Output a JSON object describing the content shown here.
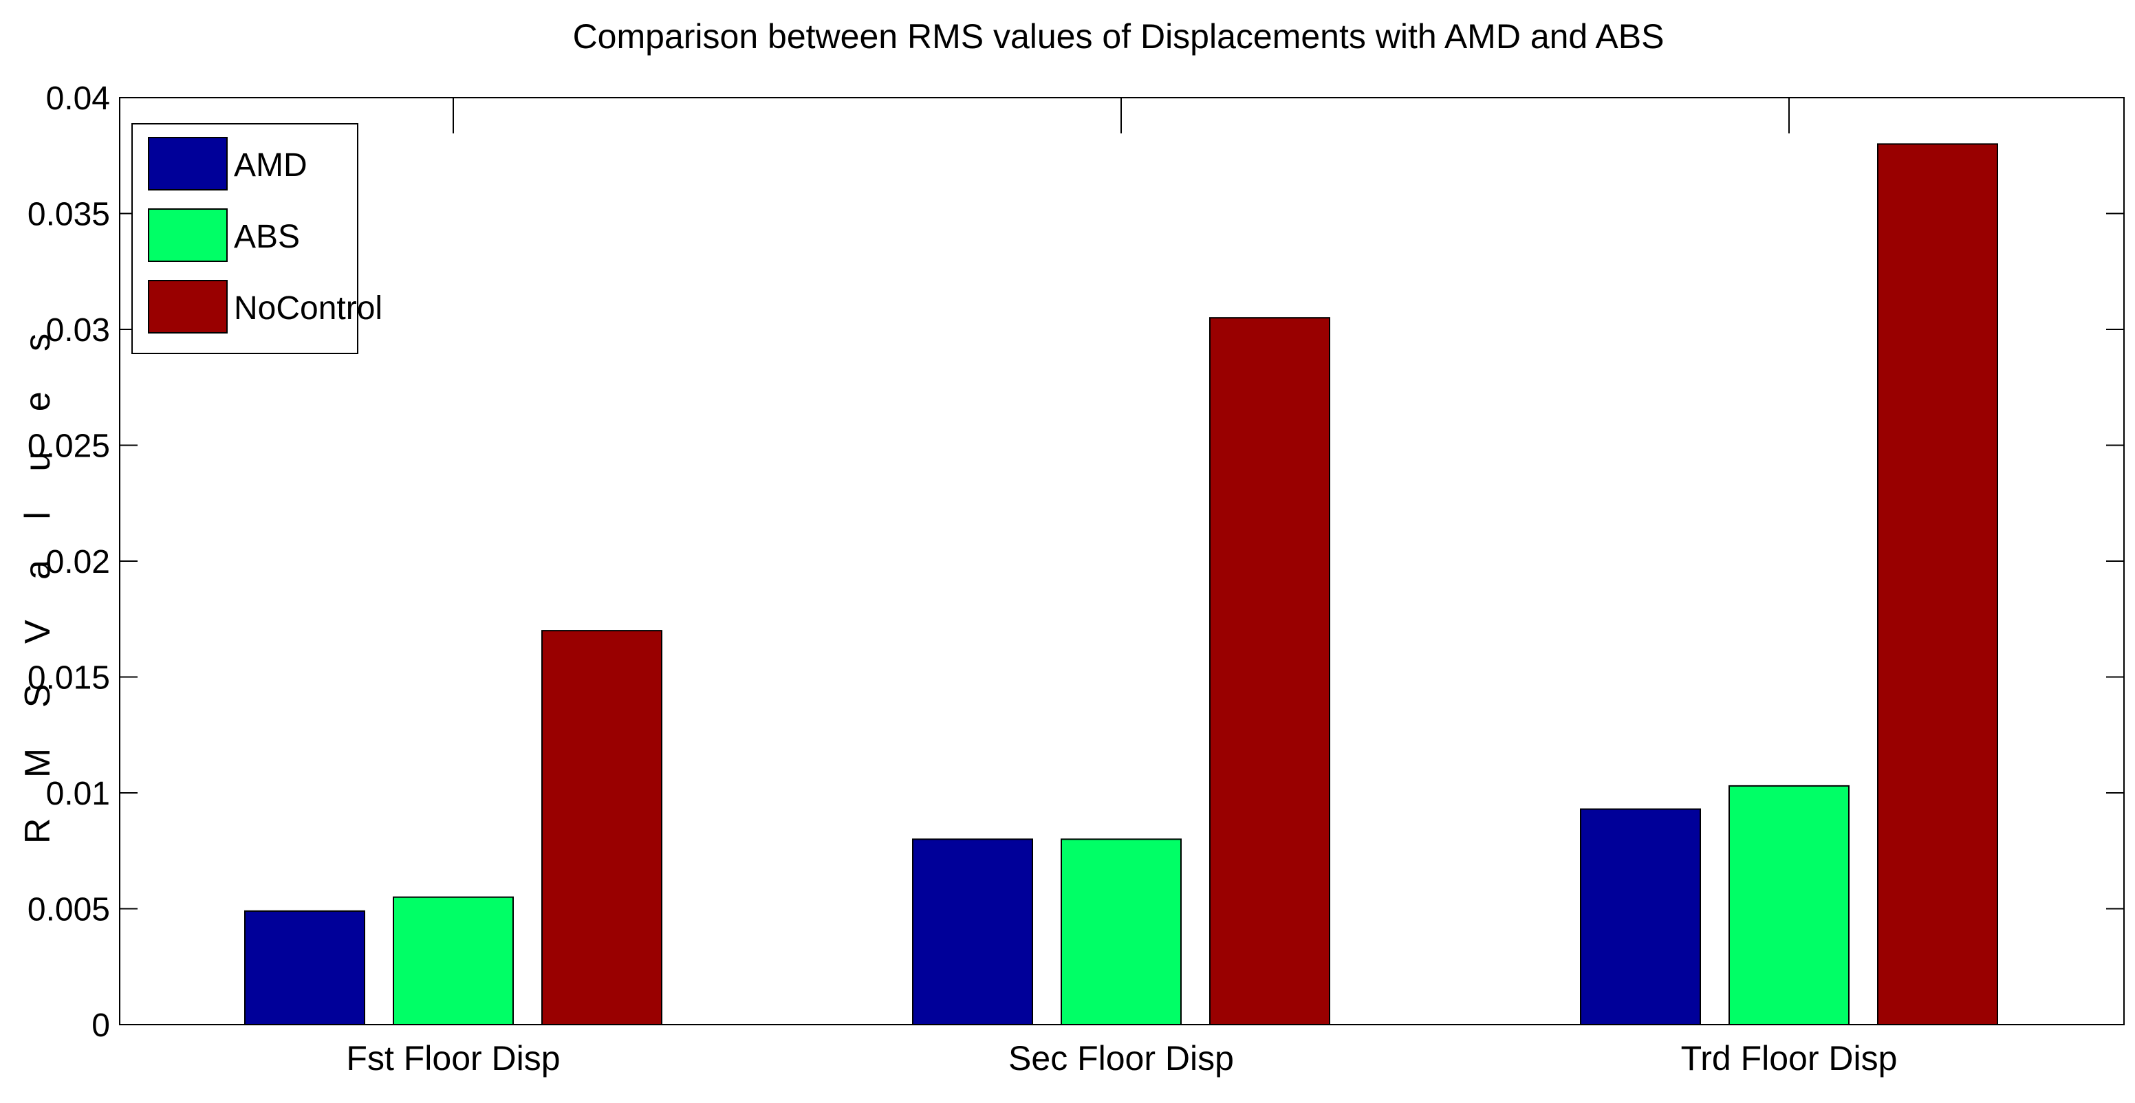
{
  "chart_data": {
    "type": "bar",
    "title": "Comparison between RMS values of Displacements with AMD and ABS",
    "xlabel": "",
    "ylabel": "R M S  V a l u e s",
    "ylim": [
      0,
      0.04
    ],
    "yticks": [
      0,
      0.005,
      0.01,
      0.015,
      0.02,
      0.025,
      0.03,
      0.035,
      0.04
    ],
    "ytick_labels": [
      "0",
      "0.005",
      "0.01",
      "0.015",
      "0.02",
      "0.025",
      "0.03",
      "0.035",
      "0.04"
    ],
    "categories": [
      "Fst Floor Disp",
      "Sec Floor Disp",
      "Trd Floor Disp"
    ],
    "series": [
      {
        "name": "AMD",
        "color": "#000099",
        "values": [
          0.0049,
          0.008,
          0.0093
        ]
      },
      {
        "name": "ABS",
        "color": "#00ff66",
        "values": [
          0.0055,
          0.008,
          0.0103
        ]
      },
      {
        "name": "NoControl",
        "color": "#990000",
        "values": [
          0.017,
          0.0305,
          0.038
        ]
      }
    ],
    "legend_position": "top-left",
    "grid": false
  }
}
